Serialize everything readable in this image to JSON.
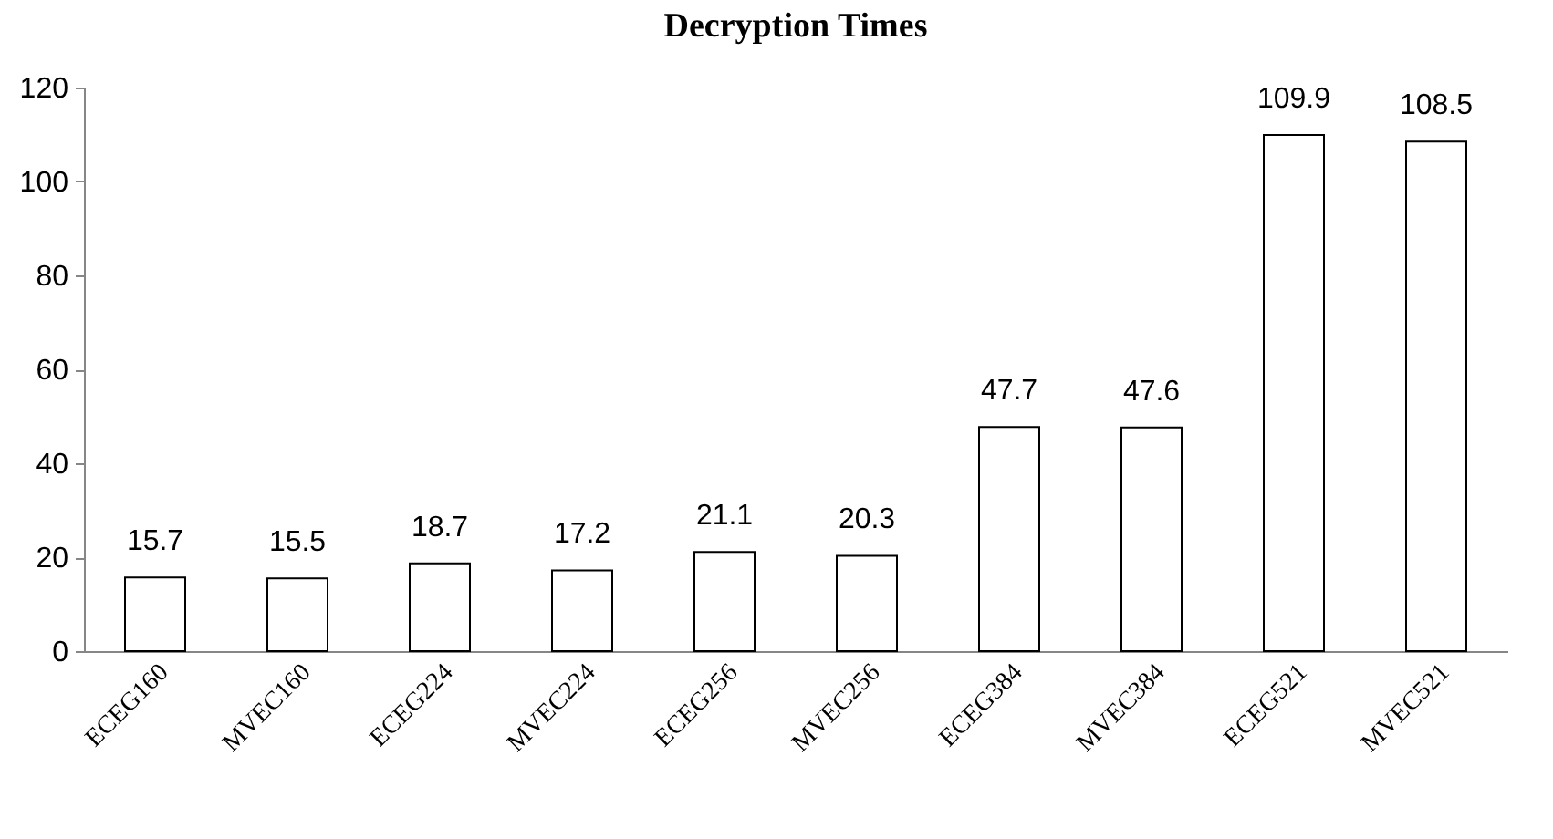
{
  "chart_data": {
    "type": "bar",
    "title": "Decryption Times",
    "categories": [
      "ECEG160",
      "MVEC160",
      "ECEG224",
      "MVEC224",
      "ECEG256",
      "MVEC256",
      "ECEG384",
      "MVEC384",
      "ECEG521",
      "MVEC521"
    ],
    "values": [
      15.7,
      15.5,
      18.7,
      17.2,
      21.1,
      20.3,
      47.7,
      47.6,
      109.9,
      108.5
    ],
    "color": "#ffffff",
    "ylim": [
      0,
      120
    ],
    "yticks": [
      0,
      20,
      40,
      60,
      80,
      100,
      120
    ],
    "data_labels": true,
    "grid": false
  }
}
